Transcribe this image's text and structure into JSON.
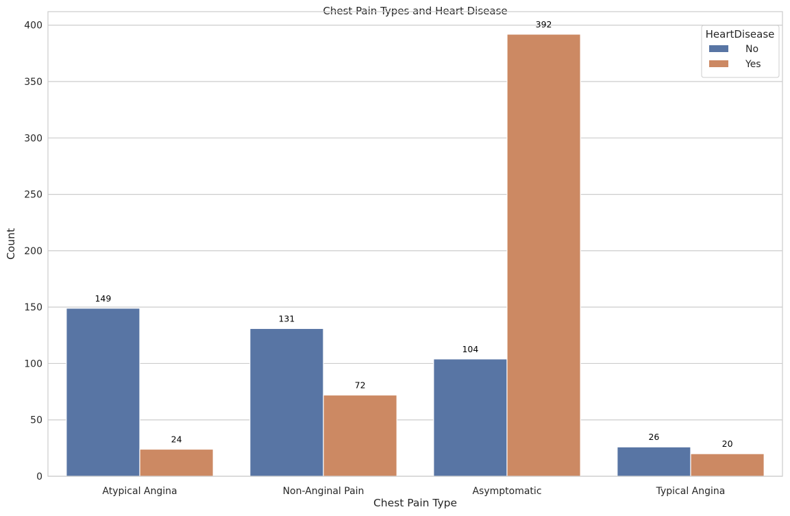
{
  "chart_data": {
    "type": "bar",
    "title": "Chest Pain Types and Heart Disease",
    "xlabel": "Chest Pain Type",
    "ylabel": "Count",
    "categories": [
      "Atypical Angina",
      "Non-Anginal Pain",
      "Asymptomatic",
      "Typical Angina"
    ],
    "series": [
      {
        "name": "No",
        "values": [
          149,
          131,
          104,
          26
        ],
        "color": "#5875a4"
      },
      {
        "name": "Yes",
        "values": [
          24,
          72,
          392,
          20
        ],
        "color": "#cc8963"
      }
    ],
    "ylim": [
      0,
      412
    ],
    "yticks": [
      0,
      50,
      100,
      150,
      200,
      250,
      300,
      350,
      400
    ],
    "grid": true,
    "legend": {
      "title": "HeartDisease",
      "placement": "top-right"
    }
  }
}
